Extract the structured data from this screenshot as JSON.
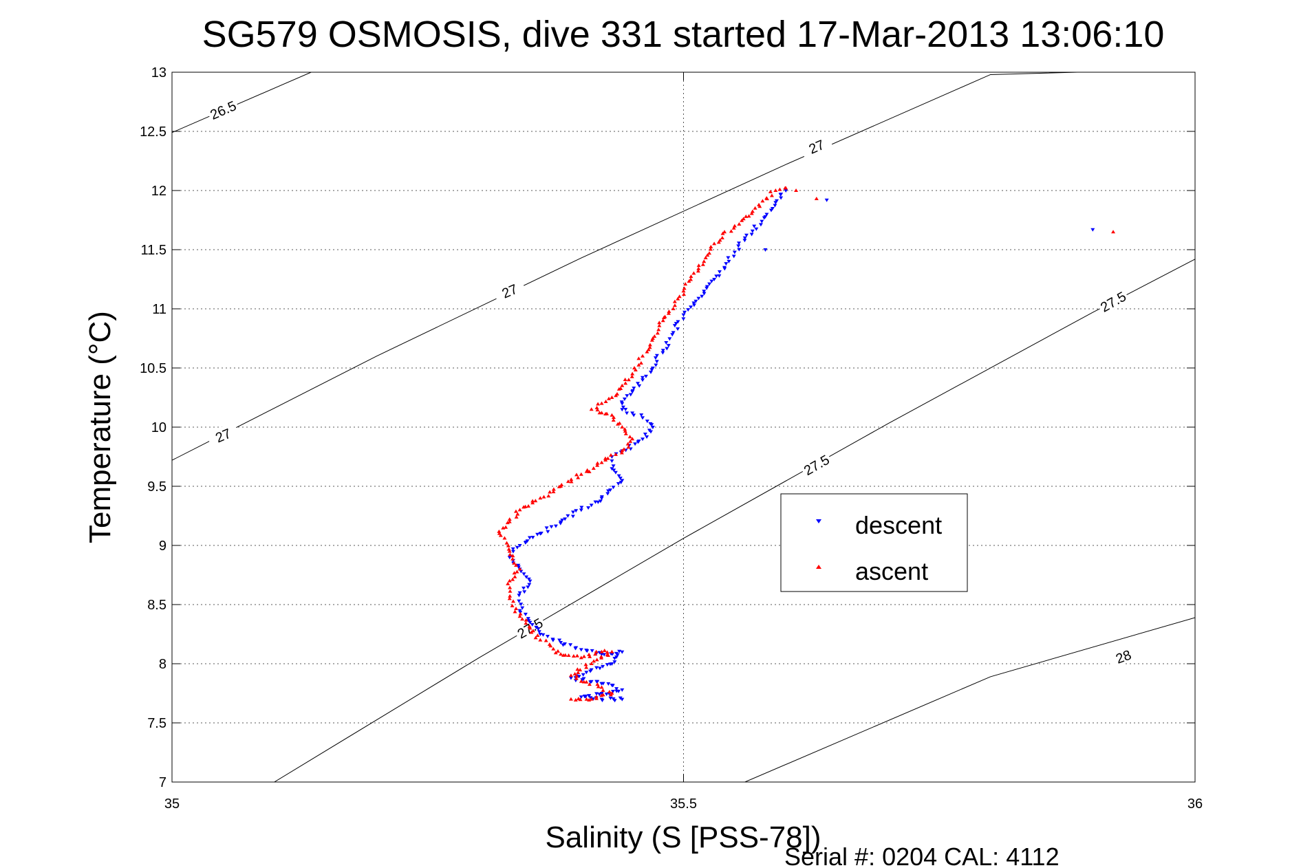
{
  "chart_data": {
    "type": "scatter",
    "title": "SG579 OSMOSIS, dive 331 started 17-Mar-2013 13:06:10",
    "xlabel": "Salinity (S [PSS-78])",
    "ylabel": "Temperature (°C)",
    "xlim": [
      35,
      36
    ],
    "ylim": [
      7,
      13
    ],
    "x_ticks": [
      "35",
      "35.5",
      "36"
    ],
    "y_ticks": [
      "7",
      "7.5",
      "8",
      "8.5",
      "9",
      "9.5",
      "10",
      "10.5",
      "11",
      "11.5",
      "12",
      "12.5",
      "13"
    ],
    "grid": true,
    "legend_position": "right",
    "footer": "Serial #: 0204  CAL: 4112",
    "density_contours": [
      {
        "label": "26.5",
        "points": [
          [
            35.0,
            12.49
          ],
          [
            35.136,
            13.0
          ]
        ],
        "label_at": [
          35.05,
          12.68
        ]
      },
      {
        "label": "27",
        "points": [
          [
            35.0,
            9.72
          ],
          [
            35.2,
            10.6
          ],
          [
            35.4,
            11.43
          ],
          [
            35.6,
            12.22
          ],
          [
            35.8,
            12.98
          ],
          [
            35.885,
            13.0
          ]
        ],
        "label_at": [
          35.33,
          11.15
        ],
        "label2_at": [
          35.05,
          9.93
        ],
        "label3_at": [
          35.63,
          12.37
        ]
      },
      {
        "label": "27.5",
        "points": [
          [
            35.1,
            7.0
          ],
          [
            35.3,
            8.05
          ],
          [
            35.5,
            9.06
          ],
          [
            35.7,
            10.03
          ],
          [
            35.9,
            10.97
          ],
          [
            36.0,
            11.42
          ]
        ],
        "label_at": [
          35.35,
          8.3
        ],
        "label2_at": [
          35.63,
          9.68
        ],
        "label3_at": [
          35.92,
          11.06
        ]
      },
      {
        "label": "28",
        "points": [
          [
            35.56,
            7.0
          ],
          [
            35.8,
            7.89
          ],
          [
            36.0,
            8.39
          ]
        ],
        "label_at": [
          35.93,
          8.06
        ]
      }
    ],
    "series": [
      {
        "name": "descent",
        "color": "#0000ff",
        "marker": "triangle-down",
        "x": [
          35.6,
          35.59,
          35.58,
          35.56,
          35.55,
          35.54,
          35.53,
          35.52,
          35.51,
          35.5,
          35.49,
          35.48,
          35.47,
          35.46,
          35.45,
          35.44,
          35.44,
          35.45,
          35.46,
          35.47,
          35.46,
          35.44,
          35.43,
          35.43,
          35.44,
          35.42,
          35.4,
          35.38,
          35.36,
          35.34,
          35.33,
          35.34,
          35.35,
          35.34,
          35.34,
          35.35,
          35.36,
          35.38,
          35.4,
          35.42,
          35.44,
          35.43,
          35.41,
          35.39,
          35.41,
          35.43,
          35.44,
          35.42,
          35.4,
          35.42,
          35.44,
          35.58,
          35.64,
          35.9
        ],
        "y": [
          12.0,
          11.9,
          11.78,
          11.6,
          11.48,
          11.35,
          11.25,
          11.15,
          11.05,
          10.95,
          10.8,
          10.65,
          10.5,
          10.4,
          10.3,
          10.2,
          10.15,
          10.12,
          10.08,
          10.0,
          9.9,
          9.8,
          9.75,
          9.65,
          9.55,
          9.4,
          9.3,
          9.2,
          9.1,
          9.0,
          8.9,
          8.8,
          8.7,
          8.6,
          8.45,
          8.35,
          8.25,
          8.18,
          8.12,
          8.08,
          8.1,
          8.0,
          7.95,
          7.88,
          7.85,
          7.82,
          7.78,
          7.75,
          7.72,
          7.7,
          7.7,
          11.5,
          11.92,
          11.67
        ]
      },
      {
        "name": "ascent",
        "color": "#ff0000",
        "marker": "triangle-up",
        "x": [
          35.6,
          35.59,
          35.57,
          35.55,
          35.53,
          35.52,
          35.51,
          35.5,
          35.49,
          35.48,
          35.47,
          35.46,
          35.45,
          35.44,
          35.43,
          35.42,
          35.41,
          35.42,
          35.43,
          35.44,
          35.45,
          35.44,
          35.42,
          35.4,
          35.38,
          35.36,
          35.34,
          35.33,
          35.32,
          35.33,
          35.34,
          35.33,
          35.33,
          35.34,
          35.35,
          35.36,
          35.37,
          35.38,
          35.4,
          35.42,
          35.43,
          35.41,
          35.39,
          35.4,
          35.42,
          35.43,
          35.41,
          35.39,
          35.61,
          35.63,
          35.92
        ],
        "y": [
          12.02,
          12.0,
          11.85,
          11.7,
          11.55,
          11.4,
          11.3,
          11.15,
          11.0,
          10.9,
          10.75,
          10.6,
          10.45,
          10.35,
          10.25,
          10.2,
          10.15,
          10.12,
          10.1,
          10.0,
          9.9,
          9.8,
          9.7,
          9.6,
          9.5,
          9.4,
          9.3,
          9.2,
          9.1,
          8.95,
          8.8,
          8.7,
          8.55,
          8.4,
          8.3,
          8.2,
          8.15,
          8.08,
          8.05,
          8.1,
          8.1,
          8.0,
          7.9,
          7.85,
          7.8,
          7.75,
          7.7,
          7.7,
          12.0,
          11.93,
          11.65
        ]
      }
    ]
  }
}
